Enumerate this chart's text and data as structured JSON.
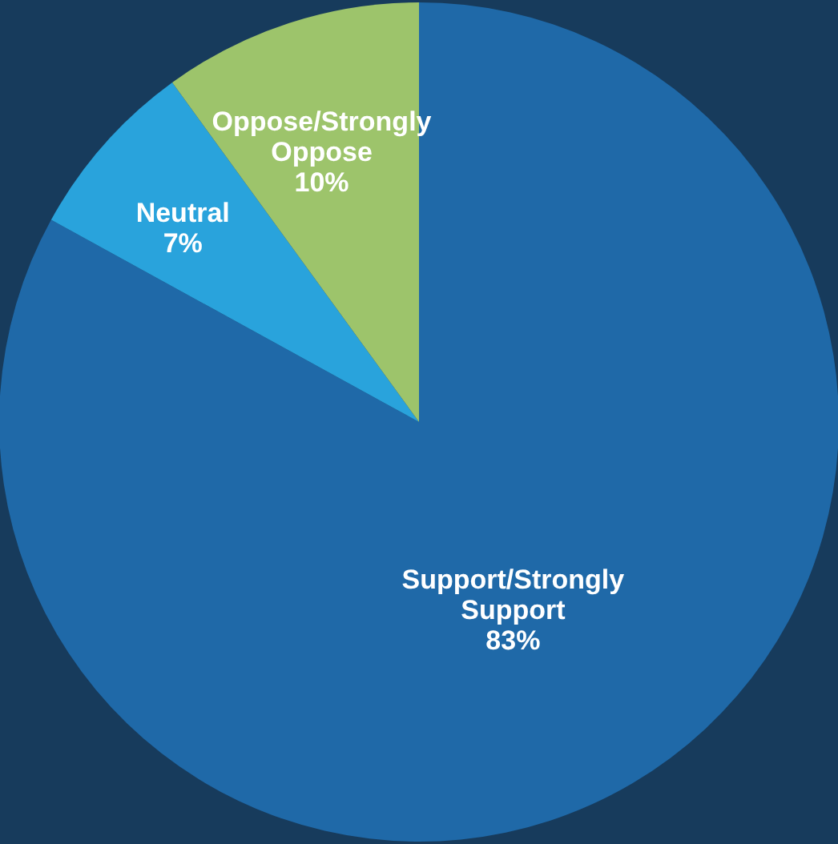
{
  "chart_data": {
    "type": "pie",
    "categories": [
      "Support/Strongly Support",
      "Neutral",
      "Oppose/Strongly Oppose"
    ],
    "values": [
      83,
      7,
      10
    ],
    "colors": [
      "#1f69a8",
      "#29a3dc",
      "#9dc46b"
    ],
    "value_labels": [
      "83%",
      "7%",
      "10%"
    ]
  }
}
